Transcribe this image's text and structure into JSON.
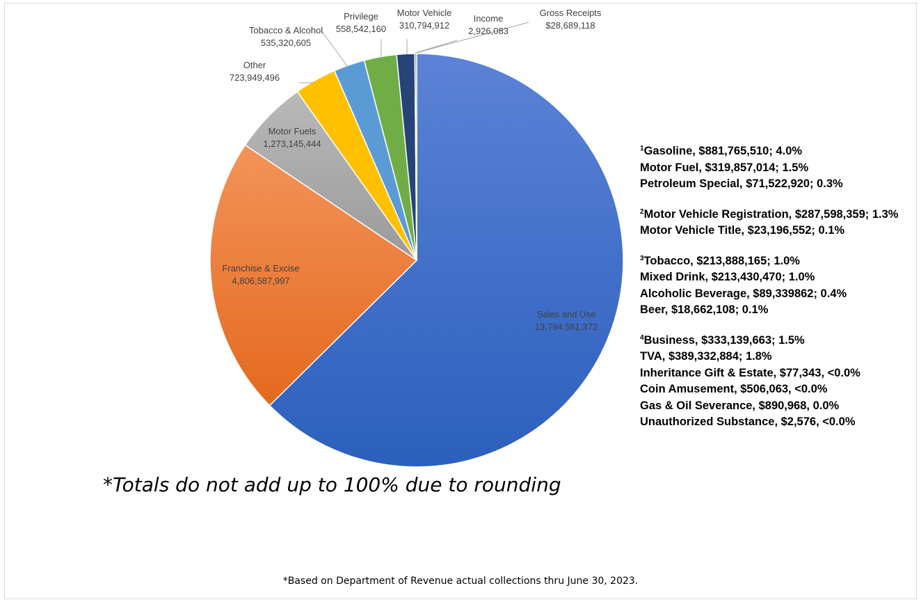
{
  "chart_data": {
    "type": "pie",
    "title": "",
    "slices": [
      {
        "label": "Sales and Use",
        "value": 13794581372,
        "value_text": "13,794,581,372",
        "color": "#3a6ccb"
      },
      {
        "label": "Franchise & Excise",
        "value": 4806587997,
        "value_text": "4,806,587,997",
        "color": "#ee7a2c"
      },
      {
        "label": "Motor Fuels",
        "value": 1273145444,
        "value_text": "1,273,145,444",
        "color": "#a5a5a5"
      },
      {
        "label": "Other",
        "value": 723949496,
        "value_text": "723,949,496",
        "color": "#ffc000"
      },
      {
        "label": "Tobacco & Alcohol",
        "value": 535320605,
        "value_text": "535,320,605",
        "color": "#5b9bd5"
      },
      {
        "label": "Privilege",
        "value": 558542160,
        "value_text": "558,542,160",
        "color": "#70ad47"
      },
      {
        "label": "Motor Vehicle",
        "value": 310794912,
        "value_text": "310,794,912",
        "color": "#264478"
      },
      {
        "label": "Income",
        "value": 2926083,
        "value_text": "2,926,083",
        "color": "#9e480e"
      },
      {
        "label": "Gross Receipts",
        "value": 28689118,
        "value_text": "$28,689,118",
        "color": "#636363"
      }
    ],
    "start_angle_deg": 0,
    "direction": "clockwise"
  },
  "footnotes": [
    {
      "marker": "1",
      "lines": [
        "Gasoline, $881,765,510; 4.0%",
        "Motor Fuel, $319,857,014; 1.5%",
        "Petroleum Special, $71,522,920; 0.3%"
      ]
    },
    {
      "marker": "2",
      "lines": [
        "Motor Vehicle Registration, $287,598,359; 1.3%",
        "Motor Vehicle Title, $23,196,552; 0.1%"
      ]
    },
    {
      "marker": "3",
      "lines": [
        "Tobacco, $213,888,165; 1.0%",
        "Mixed Drink, $213,430,470; 1.0%",
        "Alcoholic Beverage, $89,339862; 0.4%",
        "Beer, $18,662,108; 0.1%"
      ]
    },
    {
      "marker": "4",
      "lines": [
        "Business, $333,139,663; 1.5%",
        "TVA, $389,332,884; 1.8%",
        "Inheritance Gift & Estate, $77,343, <0.0%",
        "Coin Amusement, $506,063, <0.0%",
        "Gas & Oil Severance, $890,968, 0.0%",
        "Unauthorized Substance, $2,576, <0.0%"
      ]
    }
  ],
  "notes": {
    "totals": "*Totals do not add up to 100% due to rounding",
    "source": "*Based on Department of Revenue actual collections thru June 30, 2023."
  }
}
